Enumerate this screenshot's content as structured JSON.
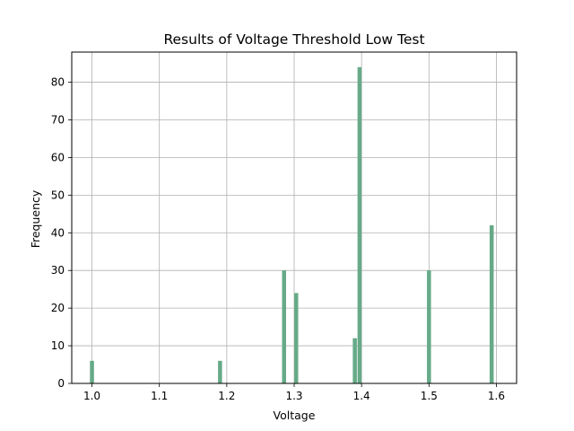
{
  "chart_data": {
    "type": "bar",
    "title": "Results of Voltage Threshold Low Test",
    "xlabel": "Voltage",
    "ylabel": "Frequency",
    "xlim": [
      0.97,
      1.63
    ],
    "ylim": [
      0,
      88
    ],
    "xticks": [
      1.0,
      1.1,
      1.2,
      1.3,
      1.4,
      1.5,
      1.6
    ],
    "xtick_labels": [
      "1.0",
      "1.1",
      "1.2",
      "1.3",
      "1.4",
      "1.5",
      "1.6"
    ],
    "yticks": [
      0,
      10,
      20,
      30,
      40,
      50,
      60,
      70,
      80
    ],
    "ytick_labels": [
      "0",
      "10",
      "20",
      "30",
      "40",
      "50",
      "60",
      "70",
      "80"
    ],
    "grid": true,
    "bar_color": "#66aa88",
    "bin_width": 0.006,
    "bins": [
      {
        "x": 1.0,
        "value": 6
      },
      {
        "x": 1.19,
        "value": 6
      },
      {
        "x": 1.285,
        "value": 30
      },
      {
        "x": 1.303,
        "value": 24
      },
      {
        "x": 1.39,
        "value": 12
      },
      {
        "x": 1.397,
        "value": 84
      },
      {
        "x": 1.5,
        "value": 30
      },
      {
        "x": 1.593,
        "value": 42
      }
    ]
  }
}
